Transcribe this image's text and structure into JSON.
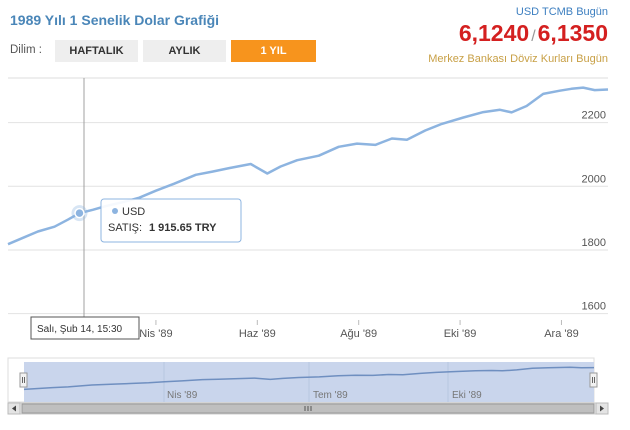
{
  "header": {
    "title": "1989 Yılı 1 Senelik Dolar Grafiği",
    "tcmb_label": "USD TCMB Bugün",
    "buy_rate": "6,1240",
    "rate_separator": "/",
    "sell_rate": "6,1350",
    "subtitle": "Merkez Bankası Döviz Kurları Bugün"
  },
  "period": {
    "label": "Dilim :",
    "buttons": [
      {
        "label": "HAFTALIK",
        "active": false
      },
      {
        "label": "AYLIK",
        "active": false
      },
      {
        "label": "1 YIL",
        "active": true
      }
    ]
  },
  "colors": {
    "line": "#8db4e0",
    "accent": "#f7941d",
    "rate": "#d42020",
    "navigator_fill": "#c9d5ec",
    "navigator_line": "#6f8fc0"
  },
  "tooltip": {
    "series": "USD",
    "label": "SATIŞ:",
    "value": "1 915.65 TRY"
  },
  "crosshair_label": "Salı, Şub 14, 15:30",
  "navigator": {
    "labels": [
      "Nis '89",
      "Tem '89",
      "Eki '89"
    ],
    "handle_icon": "grip-icon",
    "scroll_left_icon": "arrow-left-icon",
    "scroll_right_icon": "arrow-right-icon"
  },
  "chart_data": {
    "type": "line",
    "series": [
      {
        "name": "USD"
      }
    ],
    "x_tick_labels": [
      "Nis '89",
      "Haz '89",
      "Ağu '89",
      "Eki '89",
      "Ara '89"
    ],
    "y_tick_labels": [
      "1600",
      "1800",
      "2000",
      "2200"
    ],
    "ylim": [
      1580,
      2340
    ],
    "x_range": [
      "1989-01-02",
      "1989-12-29"
    ],
    "grid": true,
    "points": [
      {
        "x": "1989-01-02",
        "y": 1818
      },
      {
        "x": "1989-01-11",
        "y": 1838
      },
      {
        "x": "1989-01-20",
        "y": 1858
      },
      {
        "x": "1989-01-30",
        "y": 1873
      },
      {
        "x": "1989-02-07",
        "y": 1895
      },
      {
        "x": "1989-02-14",
        "y": 1915.65
      },
      {
        "x": "1989-02-22",
        "y": 1926
      },
      {
        "x": "1989-03-02",
        "y": 1938
      },
      {
        "x": "1989-03-12",
        "y": 1950
      },
      {
        "x": "1989-03-22",
        "y": 1964
      },
      {
        "x": "1989-04-01",
        "y": 1986
      },
      {
        "x": "1989-04-12",
        "y": 2008
      },
      {
        "x": "1989-04-25",
        "y": 2036
      },
      {
        "x": "1989-05-05",
        "y": 2046
      },
      {
        "x": "1989-05-15",
        "y": 2057
      },
      {
        "x": "1989-05-28",
        "y": 2070
      },
      {
        "x": "1989-06-07",
        "y": 2040
      },
      {
        "x": "1989-06-15",
        "y": 2062
      },
      {
        "x": "1989-06-25",
        "y": 2082
      },
      {
        "x": "1989-07-08",
        "y": 2096
      },
      {
        "x": "1989-07-20",
        "y": 2124
      },
      {
        "x": "1989-07-31",
        "y": 2134
      },
      {
        "x": "1989-08-11",
        "y": 2130
      },
      {
        "x": "1989-08-21",
        "y": 2150
      },
      {
        "x": "1989-08-30",
        "y": 2146
      },
      {
        "x": "1989-09-10",
        "y": 2175
      },
      {
        "x": "1989-09-20",
        "y": 2196
      },
      {
        "x": "1989-10-03",
        "y": 2216
      },
      {
        "x": "1989-10-15",
        "y": 2233
      },
      {
        "x": "1989-10-25",
        "y": 2240
      },
      {
        "x": "1989-11-01",
        "y": 2232
      },
      {
        "x": "1989-11-10",
        "y": 2252
      },
      {
        "x": "1989-11-20",
        "y": 2290
      },
      {
        "x": "1989-11-30",
        "y": 2300
      },
      {
        "x": "1989-12-07",
        "y": 2306
      },
      {
        "x": "1989-12-14",
        "y": 2310
      },
      {
        "x": "1989-12-21",
        "y": 2302
      },
      {
        "x": "1989-12-29",
        "y": 2304
      }
    ]
  }
}
